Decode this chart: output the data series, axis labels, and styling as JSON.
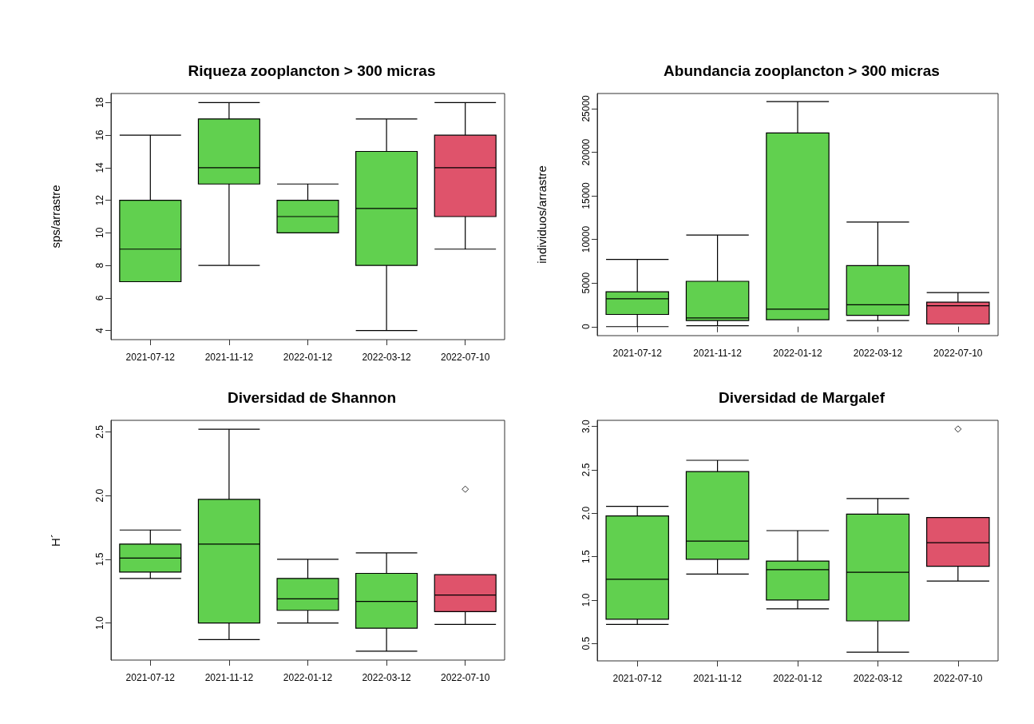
{
  "chart_data": [
    {
      "type": "box",
      "title": "Riqueza zooplancton > 300 micras",
      "ylabel": "sps/arrastre",
      "categories": [
        "2021-07-12",
        "2021-11-12",
        "2022-01-12",
        "2022-03-12",
        "2022-07-10"
      ],
      "colors": [
        "#61d04f",
        "#61d04f",
        "#61d04f",
        "#61d04f",
        "#df536b"
      ],
      "ylim": [
        3.44,
        18.56
      ],
      "yticks": [
        4,
        6,
        8,
        10,
        12,
        14,
        16,
        18
      ],
      "grid": false,
      "boxes": [
        {
          "low": 7,
          "q1": 7,
          "median": 9,
          "q3": 12,
          "high": 16
        },
        {
          "low": 8,
          "q1": 13,
          "median": 14,
          "q3": 17,
          "high": 18
        },
        {
          "low": 10,
          "q1": 10,
          "median": 11,
          "q3": 12,
          "high": 13
        },
        {
          "low": 4,
          "q1": 8,
          "median": 11.5,
          "q3": 15,
          "high": 17
        },
        {
          "low": 9,
          "q1": 11,
          "median": 14,
          "q3": 16,
          "high": 18
        }
      ]
    },
    {
      "type": "box",
      "title": "Abundancia zooplancton > 300 micras",
      "ylabel": "individuos/arrastre",
      "categories": [
        "2021-07-12",
        "2021-11-12",
        "2022-01-12",
        "2022-03-12",
        "2022-07-10"
      ],
      "colors": [
        "#61d04f",
        "#61d04f",
        "#61d04f",
        "#61d04f",
        "#df536b"
      ],
      "ylim": [
        -1030,
        26730
      ],
      "yticks": [
        0,
        5000,
        10000,
        15000,
        20000,
        25000
      ],
      "grid": false,
      "boxes": [
        {
          "low": 0,
          "q1": 1400,
          "median": 3200,
          "q3": 4000,
          "high": 7700
        },
        {
          "low": 100,
          "q1": 700,
          "median": 1000,
          "q3": 5200,
          "high": 10500
        },
        {
          "low": 800,
          "q1": 800,
          "median": 2000,
          "q3": 22200,
          "high": 25800
        },
        {
          "low": 700,
          "q1": 1300,
          "median": 2500,
          "q3": 7000,
          "high": 12000
        },
        {
          "low": 300,
          "q1": 300,
          "median": 2400,
          "q3": 2800,
          "high": 3900
        }
      ]
    },
    {
      "type": "box",
      "title": "Diversidad de Shannon",
      "ylabel": "H´",
      "categories": [
        "2021-07-12",
        "2021-11-12",
        "2022-01-12",
        "2022-03-12",
        "2022-07-10"
      ],
      "colors": [
        "#61d04f",
        "#61d04f",
        "#61d04f",
        "#61d04f",
        "#df536b"
      ],
      "ylim": [
        0.71,
        2.59
      ],
      "yticks": [
        {
          "value": 1,
          "label": "1.0"
        },
        1.5,
        {
          "value": 2,
          "label": "2.0"
        },
        2.5
      ],
      "grid": false,
      "boxes": [
        {
          "low": 1.35,
          "q1": 1.4,
          "median": 1.51,
          "q3": 1.62,
          "high": 1.73
        },
        {
          "low": 0.87,
          "q1": 1.0,
          "median": 1.62,
          "q3": 1.97,
          "high": 2.52
        },
        {
          "low": 1.0,
          "q1": 1.1,
          "median": 1.19,
          "q3": 1.35,
          "high": 1.5
        },
        {
          "low": 0.78,
          "q1": 0.96,
          "median": 1.17,
          "q3": 1.39,
          "high": 1.55
        },
        {
          "low": 0.99,
          "q1": 1.09,
          "median": 1.22,
          "q3": 1.38,
          "high": 1.38,
          "outliers": [
            2.05
          ]
        }
      ]
    },
    {
      "type": "box",
      "title": "Diversidad de Margalef",
      "categories": [
        "2021-07-12",
        "2021-11-12",
        "2022-01-12",
        "2022-03-12",
        "2022-07-10"
      ],
      "colors": [
        "#61d04f",
        "#61d04f",
        "#61d04f",
        "#61d04f",
        "#df536b"
      ],
      "ylim": [
        0.3,
        3.07
      ],
      "yticks": [
        0.5,
        {
          "value": 1,
          "label": "1.0"
        },
        1.5,
        {
          "value": 2,
          "label": "2.0"
        },
        2.5,
        {
          "value": 3,
          "label": "3.0"
        }
      ],
      "grid": false,
      "boxes": [
        {
          "low": 0.72,
          "q1": 0.78,
          "median": 1.24,
          "q3": 1.97,
          "high": 2.08
        },
        {
          "low": 1.3,
          "q1": 1.47,
          "median": 1.68,
          "q3": 2.48,
          "high": 2.61
        },
        {
          "low": 0.9,
          "q1": 1.0,
          "median": 1.35,
          "q3": 1.45,
          "high": 1.8
        },
        {
          "low": 0.4,
          "q1": 0.76,
          "median": 1.32,
          "q3": 1.99,
          "high": 2.17
        },
        {
          "low": 1.22,
          "q1": 1.39,
          "median": 1.66,
          "q3": 1.95,
          "high": 1.95,
          "outliers": [
            2.97
          ]
        }
      ]
    }
  ]
}
